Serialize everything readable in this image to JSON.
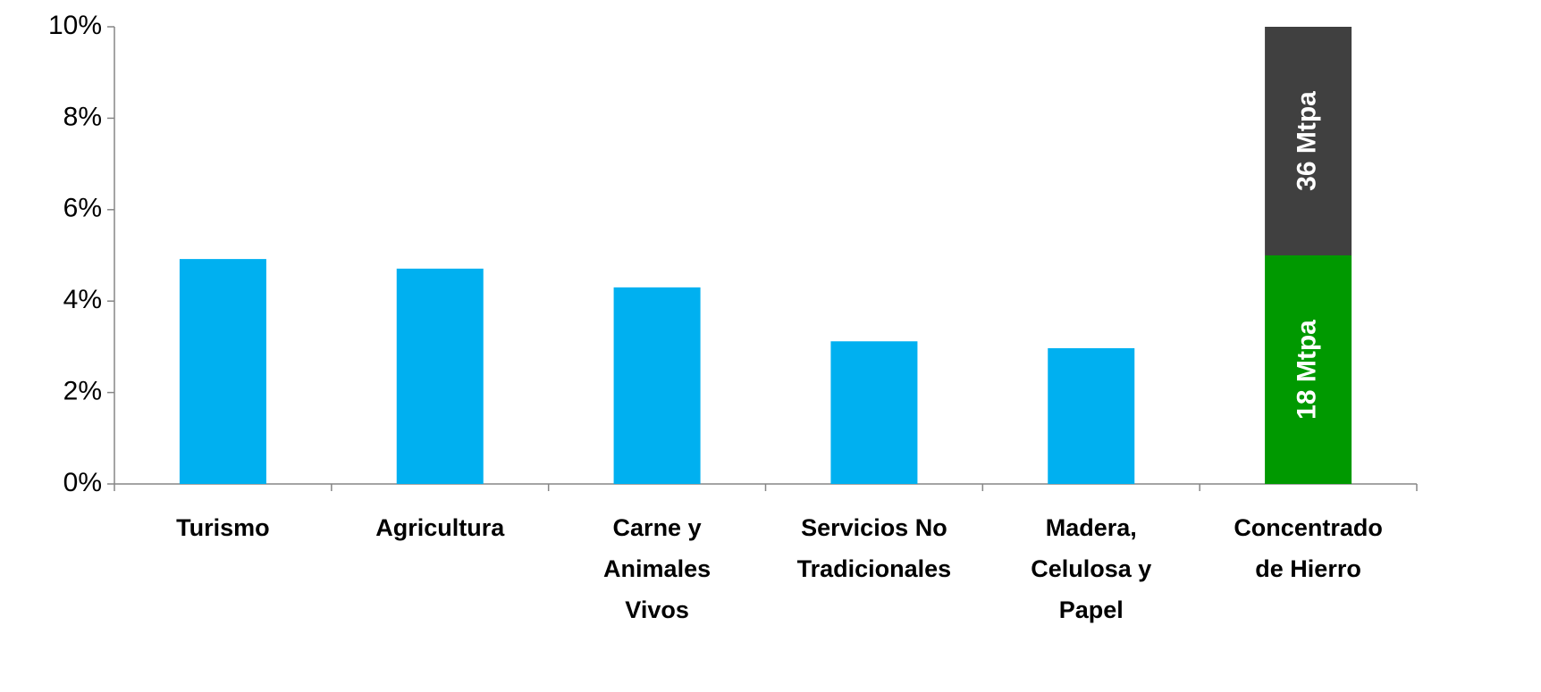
{
  "chart_data": {
    "type": "bar",
    "stacked": true,
    "categories": [
      "Turismo",
      "Agricultura",
      "Carne y\nAnimales\nVivos",
      "Servicios No\nTradicionales",
      "Madera,\nCelulosa y\nPapel",
      "Concentrado\nde Hierro"
    ],
    "series": [
      {
        "color": "#00b0f0",
        "values": [
          4.92,
          4.71,
          4.3,
          3.12,
          2.97,
          null
        ]
      },
      {
        "name": "18 Mtpa",
        "color": "#009900",
        "values": [
          null,
          null,
          null,
          null,
          null,
          5
        ]
      },
      {
        "name": "36 Mtpa",
        "color": "#404040",
        "values": [
          null,
          null,
          null,
          null,
          null,
          5
        ]
      }
    ],
    "ylim": [
      0,
      10
    ],
    "yticks": [
      {
        "value": 0,
        "label": "0%"
      },
      {
        "value": 2,
        "label": "2%"
      },
      {
        "value": 4,
        "label": "4%"
      },
      {
        "value": 6,
        "label": "6%"
      },
      {
        "value": 8,
        "label": "8%"
      },
      {
        "value": 10,
        "label": "10%"
      }
    ],
    "grid": false
  }
}
